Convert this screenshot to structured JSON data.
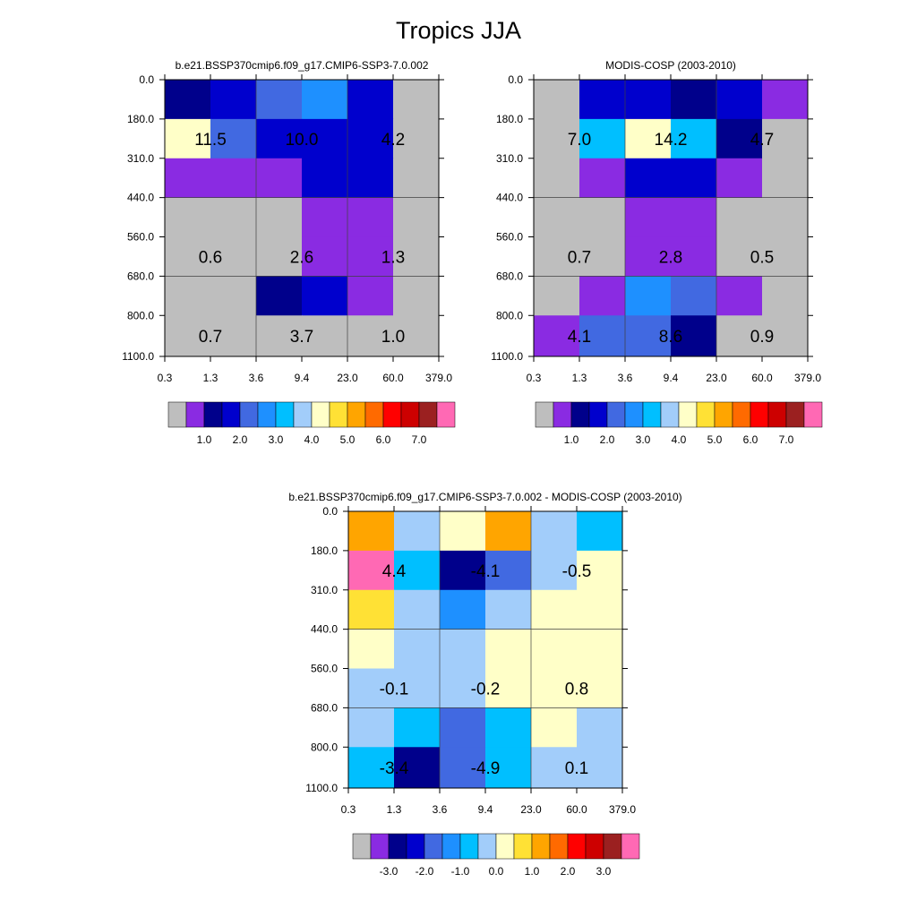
{
  "title": "Tropics JJA",
  "colors": {
    "missing": "#bebebe",
    "grid": "#404040",
    "abs_palette": [
      "#8a2be2",
      "#00008b",
      "#0000cd",
      "#4169e1",
      "#1e90ff",
      "#00bfff",
      "#a2cdfa",
      "#ffffc8",
      "#ffe135",
      "#ffa500",
      "#ff6a00",
      "#ff0000",
      "#cd0000",
      "#9b2020",
      "#ff69b4"
    ],
    "diff_palette": [
      "#8a2be2",
      "#00008b",
      "#0000cd",
      "#4169e1",
      "#1e90ff",
      "#00bfff",
      "#a2cdfa",
      "#ffffc8",
      "#ffe135",
      "#ffa500",
      "#ff6a00",
      "#ff0000",
      "#cd0000",
      "#9b2020",
      "#ff69b4"
    ]
  },
  "chart_data": [
    {
      "type": "heatmap",
      "title": "b.e21.BSSP370cmip6.f09_g17.CMIP6-SSP3-7.0.002",
      "xlabel": "",
      "ylabel": "",
      "x_ticks": [
        "0.3",
        "1.3",
        "3.6",
        "9.4",
        "23.0",
        "60.0",
        "379.0"
      ],
      "y_ticks": [
        "0.0",
        "180.0",
        "310.0",
        "440.0",
        "560.0",
        "680.0",
        "800.0",
        "1100.0"
      ],
      "colorbar": {
        "labels": [
          "1.0",
          "2.0",
          "3.0",
          "4.0",
          "5.0",
          "6.0",
          "7.0"
        ]
      },
      "cells": [
        [
          "1",
          "2",
          "3",
          "4",
          "2",
          "M"
        ],
        [
          "7",
          "3",
          "2",
          "2",
          "2",
          "M"
        ],
        [
          "0",
          "0",
          "0",
          "2",
          "2",
          "M"
        ],
        [
          "M",
          "M",
          "M",
          "0",
          "0",
          "M"
        ],
        [
          "M",
          "M",
          "M",
          "0",
          "0",
          "M"
        ],
        [
          "M",
          "M",
          "1",
          "2",
          "0",
          "M"
        ],
        [
          "M",
          "M",
          "M",
          "M",
          "M",
          "M"
        ]
      ],
      "labels": [
        {
          "value": "11.5",
          "row": 1,
          "col": 0
        },
        {
          "value": "10.0",
          "row": 1,
          "col": 2
        },
        {
          "value": "4.2",
          "row": 1,
          "col": 4
        },
        {
          "value": "0.6",
          "row": 4,
          "col": 0
        },
        {
          "value": "2.6",
          "row": 4,
          "col": 2
        },
        {
          "value": "1.3",
          "row": 4,
          "col": 4
        },
        {
          "value": "0.7",
          "row": 6,
          "col": 0
        },
        {
          "value": "3.7",
          "row": 6,
          "col": 2
        },
        {
          "value": "1.0",
          "row": 6,
          "col": 4
        }
      ]
    },
    {
      "type": "heatmap",
      "title": "MODIS-COSP (2003-2010)",
      "xlabel": "",
      "ylabel": "",
      "x_ticks": [
        "0.3",
        "1.3",
        "3.6",
        "9.4",
        "23.0",
        "60.0",
        "379.0"
      ],
      "y_ticks": [
        "0.0",
        "180.0",
        "310.0",
        "440.0",
        "560.0",
        "680.0",
        "800.0",
        "1100.0"
      ],
      "colorbar": {
        "labels": [
          "1.0",
          "2.0",
          "3.0",
          "4.0",
          "5.0",
          "6.0",
          "7.0"
        ]
      },
      "cells": [
        [
          "M",
          "2",
          "2",
          "1",
          "2",
          "0"
        ],
        [
          "M",
          "5",
          "7",
          "5",
          "1",
          "M"
        ],
        [
          "M",
          "0",
          "2",
          "2",
          "0",
          "M"
        ],
        [
          "M",
          "M",
          "0",
          "0",
          "M",
          "M"
        ],
        [
          "M",
          "M",
          "0",
          "0",
          "M",
          "M"
        ],
        [
          "M",
          "0",
          "4",
          "3",
          "0",
          "M"
        ],
        [
          "0",
          "3",
          "3",
          "1",
          "M",
          "M"
        ]
      ],
      "labels": [
        {
          "value": "7.0",
          "row": 1,
          "col": 0
        },
        {
          "value": "14.2",
          "row": 1,
          "col": 2
        },
        {
          "value": "4.7",
          "row": 1,
          "col": 4
        },
        {
          "value": "0.7",
          "row": 4,
          "col": 0
        },
        {
          "value": "2.8",
          "row": 4,
          "col": 2
        },
        {
          "value": "0.5",
          "row": 4,
          "col": 4
        },
        {
          "value": "4.1",
          "row": 6,
          "col": 0
        },
        {
          "value": "8.6",
          "row": 6,
          "col": 2
        },
        {
          "value": "0.9",
          "row": 6,
          "col": 4
        }
      ]
    },
    {
      "type": "heatmap",
      "title": "b.e21.BSSP370cmip6.f09_g17.CMIP6-SSP3-7.0.002 - MODIS-COSP (2003-2010)",
      "xlabel": "",
      "ylabel": "",
      "x_ticks": [
        "0.3",
        "1.3",
        "3.6",
        "9.4",
        "23.0",
        "60.0",
        "379.0"
      ],
      "y_ticks": [
        "0.0",
        "180.0",
        "310.0",
        "440.0",
        "560.0",
        "680.0",
        "800.0",
        "1100.0"
      ],
      "colorbar": {
        "labels": [
          "-3.0",
          "-2.0",
          "-1.0",
          "0.0",
          "1.0",
          "2.0",
          "3.0"
        ]
      },
      "cells": [
        [
          "9",
          "6",
          "7",
          "9",
          "6",
          "5"
        ],
        [
          "14",
          "5",
          "1",
          "3",
          "6",
          "7"
        ],
        [
          "8",
          "6",
          "4",
          "6",
          "7",
          "7"
        ],
        [
          "7",
          "6",
          "6",
          "7",
          "7",
          "7"
        ],
        [
          "6",
          "6",
          "6",
          "7",
          "7",
          "7"
        ],
        [
          "6",
          "5",
          "3",
          "5",
          "7",
          "6"
        ],
        [
          "5",
          "1",
          "3",
          "5",
          "6",
          "6"
        ]
      ],
      "labels": [
        {
          "value": "4.4",
          "row": 1,
          "col": 0
        },
        {
          "value": "-4.1",
          "row": 1,
          "col": 2
        },
        {
          "value": "-0.5",
          "row": 1,
          "col": 4
        },
        {
          "value": "-0.1",
          "row": 4,
          "col": 0
        },
        {
          "value": "-0.2",
          "row": 4,
          "col": 2
        },
        {
          "value": "0.8",
          "row": 4,
          "col": 4
        },
        {
          "value": "-3.4",
          "row": 6,
          "col": 0
        },
        {
          "value": "-4.9",
          "row": 6,
          "col": 2
        },
        {
          "value": "0.1",
          "row": 6,
          "col": 4
        }
      ]
    }
  ]
}
